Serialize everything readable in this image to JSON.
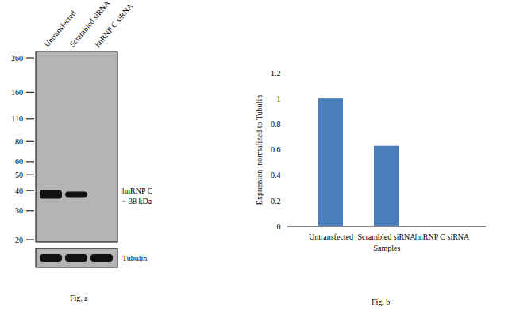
{
  "blot": {
    "lanes": [
      {
        "name": "Untransfected",
        "hnRNP_C_band": true,
        "tubulin_band": true
      },
      {
        "name": "Scrambled siRNA",
        "hnRNP_C_band": true,
        "tubulin_band": true
      },
      {
        "name": "hnRNP C siRNA",
        "hnRNP_C_band": false,
        "tubulin_band": true
      }
    ],
    "markers": [
      260,
      160,
      110,
      80,
      60,
      50,
      40,
      30,
      20
    ],
    "band_label": "hnRNP C",
    "band_size": "~ 38 kDa",
    "loading_control": "Tubulin",
    "caption": "Fig. a"
  },
  "chart_data": {
    "type": "bar",
    "categories": [
      "Untransfected",
      "Scrambled siRNA",
      "hnRNP C siRNA"
    ],
    "values": [
      1,
      0.63,
      0
    ],
    "color": "#4a7ebb",
    "x_label": "Samples",
    "y_label": "Expression  normalized to Tubulin",
    "ylim": [
      0,
      1.2
    ],
    "yticks": [
      0,
      0.2,
      0.4,
      0.6,
      0.8,
      1,
      1.2
    ],
    "grid": false,
    "caption": "Fig. b"
  }
}
